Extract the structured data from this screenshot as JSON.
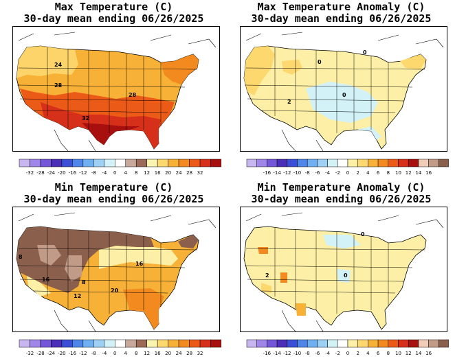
{
  "panels": [
    {
      "id": "max-temp",
      "title_line1": "Max Temperature (C)",
      "title_line2": "30-day mean ending 06/26/2025",
      "contour_labels": [
        "24",
        "28",
        "28",
        "32"
      ],
      "colorbar_ticks": [
        "-32",
        "-28",
        "-24",
        "-20",
        "-16",
        "-12",
        "-8",
        "-4",
        "0",
        "4",
        "8",
        "12",
        "16",
        "20",
        "24",
        "28",
        "32"
      ],
      "colorbar_colors": [
        "#c8b6f0",
        "#9f86e8",
        "#7457d8",
        "#4b2fb8",
        "#3a4fd6",
        "#4f86ea",
        "#6fb0f2",
        "#9dd0f5",
        "#d2f2f8",
        "#ffffff",
        "#c8a89a",
        "#9b6a58",
        "#f9f4b0",
        "#fdd86f",
        "#f7b136",
        "#f28a1f",
        "#ec5a18",
        "#d7301a",
        "#a80f0f"
      ]
    },
    {
      "id": "max-temp-anomaly",
      "title_line1": "Max Temperature Anomaly (C)",
      "title_line2": "30-day mean ending 06/26/2025",
      "contour_labels": [
        "0",
        "0",
        "2",
        "0"
      ],
      "colorbar_ticks": [
        "-16",
        "-14",
        "-12",
        "-10",
        "-8",
        "-6",
        "-4",
        "-2",
        "0",
        "2",
        "4",
        "6",
        "8",
        "10",
        "12",
        "14",
        "16"
      ],
      "colorbar_colors": [
        "#c8b6f0",
        "#9f86e8",
        "#7457d8",
        "#4b2fb8",
        "#3a4fd6",
        "#4f86ea",
        "#6fb0f2",
        "#9dd0f5",
        "#d2f2f8",
        "#ffffff",
        "#fdf0a6",
        "#fdd86f",
        "#f7b136",
        "#f28a1f",
        "#ec5a18",
        "#d7301a",
        "#a80f0f",
        "#f1cdb8",
        "#c29b88",
        "#8a5f4c"
      ]
    },
    {
      "id": "min-temp",
      "title_line1": "Min Temperature (C)",
      "title_line2": "30-day mean ending 06/26/2025",
      "contour_labels": [
        "8",
        "16",
        "8",
        "12",
        "20",
        "16"
      ],
      "colorbar_ticks": [
        "-32",
        "-28",
        "-24",
        "-20",
        "-16",
        "-12",
        "-8",
        "-4",
        "0",
        "4",
        "8",
        "12",
        "16",
        "20",
        "24",
        "28",
        "32"
      ],
      "colorbar_colors": [
        "#c8b6f0",
        "#9f86e8",
        "#7457d8",
        "#4b2fb8",
        "#3a4fd6",
        "#4f86ea",
        "#6fb0f2",
        "#9dd0f5",
        "#d2f2f8",
        "#ffffff",
        "#c8a89a",
        "#9b6a58",
        "#f9f4b0",
        "#fdd86f",
        "#f7b136",
        "#f28a1f",
        "#ec5a18",
        "#d7301a",
        "#a80f0f"
      ]
    },
    {
      "id": "min-temp-anomaly",
      "title_line1": "Min Temperature Anomaly (C)",
      "title_line2": "30-day mean ending 06/26/2025",
      "contour_labels": [
        "0",
        "2",
        "0"
      ],
      "colorbar_ticks": [
        "-16",
        "-14",
        "-12",
        "-10",
        "-8",
        "-6",
        "-4",
        "-2",
        "0",
        "2",
        "4",
        "6",
        "8",
        "10",
        "12",
        "14",
        "16"
      ],
      "colorbar_colors": [
        "#c8b6f0",
        "#9f86e8",
        "#7457d8",
        "#4b2fb8",
        "#3a4fd6",
        "#4f86ea",
        "#6fb0f2",
        "#9dd0f5",
        "#d2f2f8",
        "#ffffff",
        "#fdf0a6",
        "#fdd86f",
        "#f7b136",
        "#f28a1f",
        "#ec5a18",
        "#d7301a",
        "#a80f0f",
        "#f1cdb8",
        "#c29b88",
        "#8a5f4c"
      ]
    }
  ]
}
